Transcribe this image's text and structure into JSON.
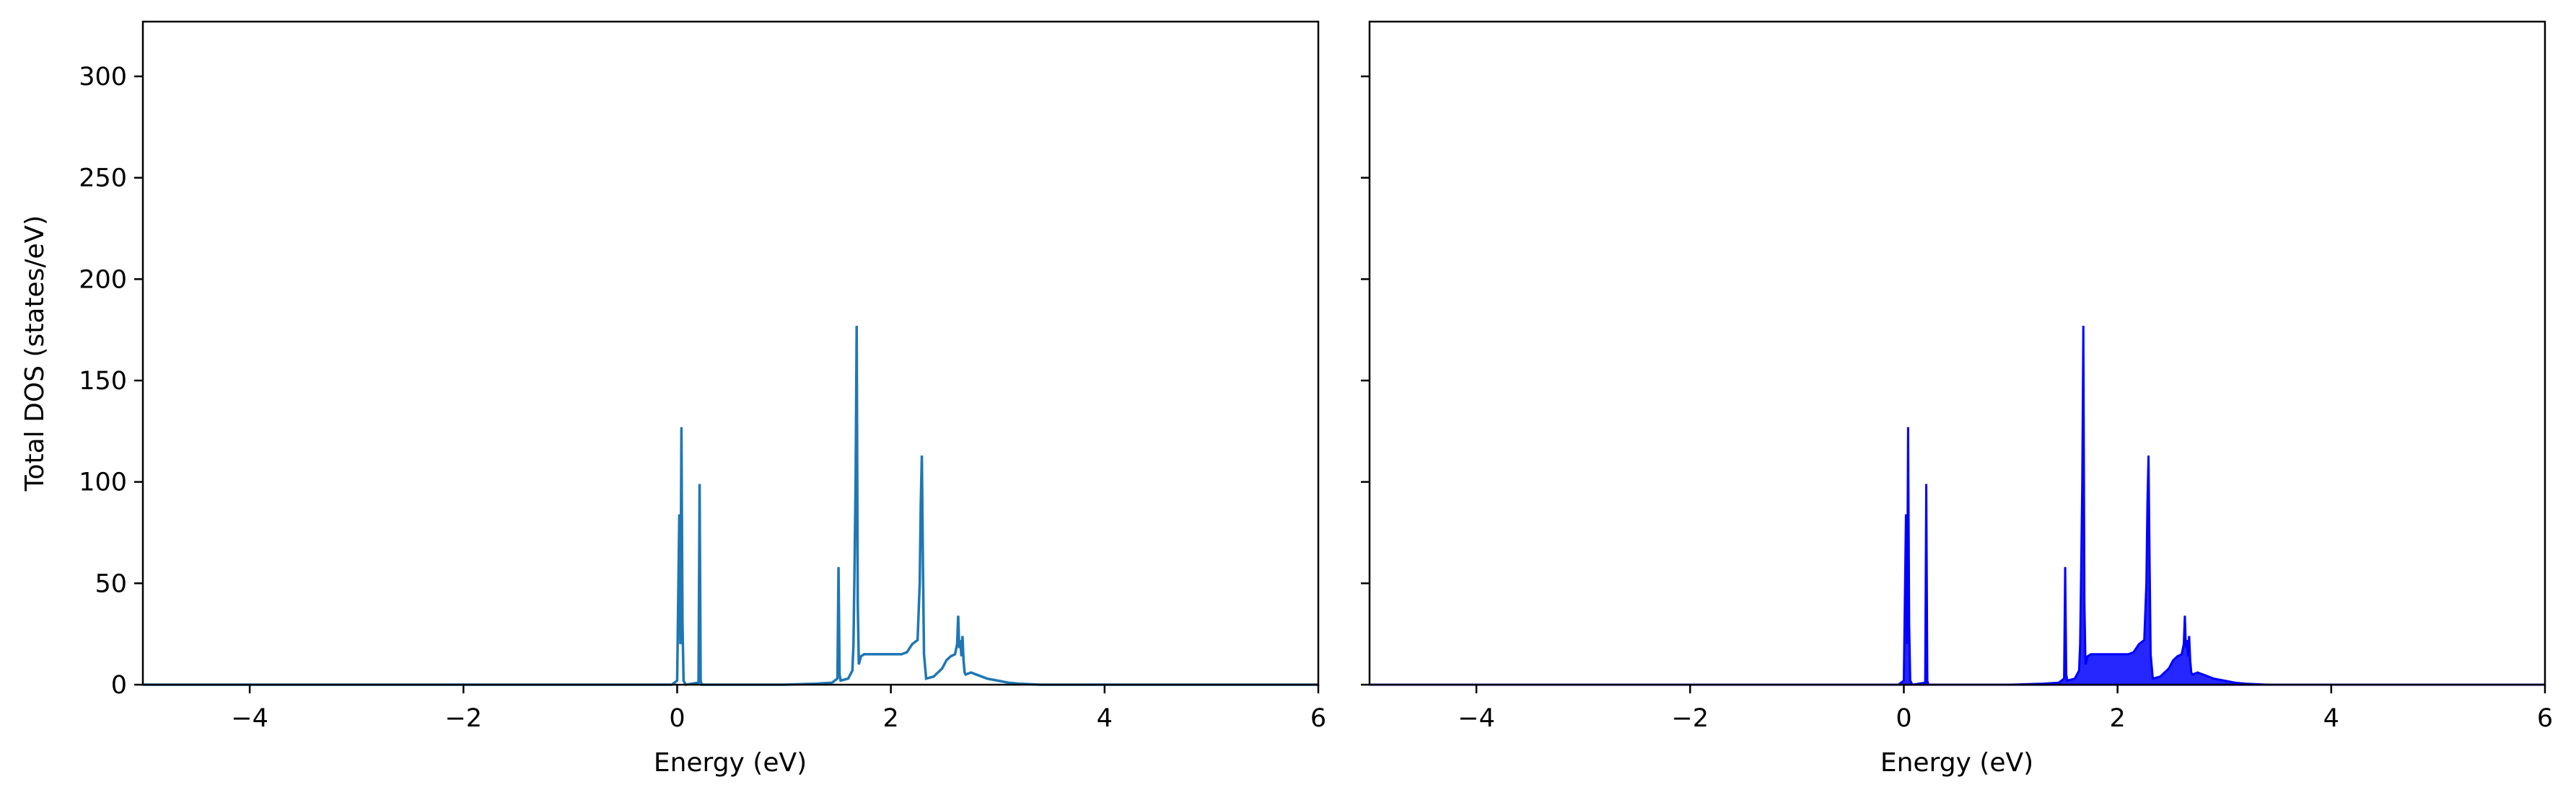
{
  "chart_data": [
    {
      "type": "line",
      "title": "",
      "xlabel": "Energy (eV)",
      "ylabel": "Total DOS (states/eV)",
      "xlim": [
        -5,
        6
      ],
      "ylim": [
        0,
        327
      ],
      "xticks": [
        -4,
        -2,
        0,
        2,
        4,
        6
      ],
      "yticks": [
        0,
        50,
        100,
        150,
        200,
        250,
        300
      ],
      "grid": false,
      "legend": "none",
      "color": "#1f77b4",
      "fill": false,
      "series": [
        {
          "x": [
            -5.0,
            -0.05,
            0.0,
            0.02,
            0.03,
            0.04,
            0.05,
            0.06,
            0.08,
            0.2,
            0.21,
            0.22,
            0.23,
            0.25,
            1.0,
            1.3,
            1.45,
            1.5,
            1.51,
            1.52,
            1.53,
            1.6,
            1.64,
            1.65,
            1.66,
            1.67,
            1.68,
            1.69,
            1.7,
            1.72,
            1.75,
            1.85,
            2.0,
            2.1,
            2.15,
            2.2,
            2.25,
            2.27,
            2.28,
            2.29,
            2.3,
            2.31,
            2.33,
            2.4,
            2.48,
            2.52,
            2.56,
            2.6,
            2.62,
            2.63,
            2.64,
            2.65,
            2.66,
            2.67,
            2.68,
            2.69,
            2.7,
            2.75,
            2.8,
            2.9,
            3.0,
            3.1,
            3.2,
            3.4,
            6.0
          ],
          "y": [
            0,
            0,
            2,
            84,
            20,
            127,
            30,
            2,
            0,
            1,
            99,
            2,
            0,
            0,
            0,
            0.5,
            1,
            3,
            58,
            5,
            2,
            3,
            7,
            20,
            58,
            100,
            177,
            40,
            10,
            14,
            15,
            15,
            15,
            15,
            16,
            20,
            22,
            50,
            90,
            113,
            60,
            15,
            3,
            4,
            8,
            12,
            14,
            15,
            20,
            34,
            18,
            22,
            14,
            24,
            12,
            6,
            5,
            6,
            5,
            3,
            2,
            1,
            0.5,
            0,
            0
          ]
        }
      ]
    },
    {
      "type": "area",
      "title": "",
      "xlabel": "Energy (eV)",
      "ylabel": "",
      "xlim": [
        -5,
        6
      ],
      "ylim": [
        0,
        327
      ],
      "xticks": [
        -4,
        -2,
        0,
        2,
        4,
        6
      ],
      "yticks": [
        0,
        50,
        100,
        150,
        200,
        250,
        300
      ],
      "grid": false,
      "legend": "none",
      "color": "#0000ff",
      "fill": true,
      "series": [
        {
          "x": [
            -5.0,
            -0.05,
            0.0,
            0.02,
            0.03,
            0.04,
            0.05,
            0.06,
            0.08,
            0.2,
            0.21,
            0.22,
            0.23,
            0.25,
            1.0,
            1.3,
            1.45,
            1.5,
            1.51,
            1.52,
            1.53,
            1.6,
            1.64,
            1.65,
            1.66,
            1.67,
            1.68,
            1.69,
            1.7,
            1.72,
            1.75,
            1.85,
            2.0,
            2.1,
            2.15,
            2.2,
            2.25,
            2.27,
            2.28,
            2.29,
            2.3,
            2.31,
            2.33,
            2.4,
            2.48,
            2.52,
            2.56,
            2.6,
            2.62,
            2.63,
            2.64,
            2.65,
            2.66,
            2.67,
            2.68,
            2.69,
            2.7,
            2.75,
            2.8,
            2.9,
            3.0,
            3.1,
            3.2,
            3.4,
            6.0
          ],
          "y": [
            0,
            0,
            2,
            84,
            20,
            127,
            30,
            2,
            0,
            1,
            99,
            2,
            0,
            0,
            0,
            0.5,
            1,
            3,
            58,
            5,
            2,
            3,
            7,
            20,
            58,
            100,
            177,
            40,
            10,
            14,
            15,
            15,
            15,
            15,
            16,
            20,
            22,
            50,
            90,
            113,
            60,
            15,
            3,
            4,
            8,
            12,
            14,
            15,
            20,
            34,
            18,
            22,
            14,
            24,
            12,
            6,
            5,
            6,
            5,
            3,
            2,
            1,
            0.5,
            0,
            0
          ]
        }
      ]
    }
  ]
}
